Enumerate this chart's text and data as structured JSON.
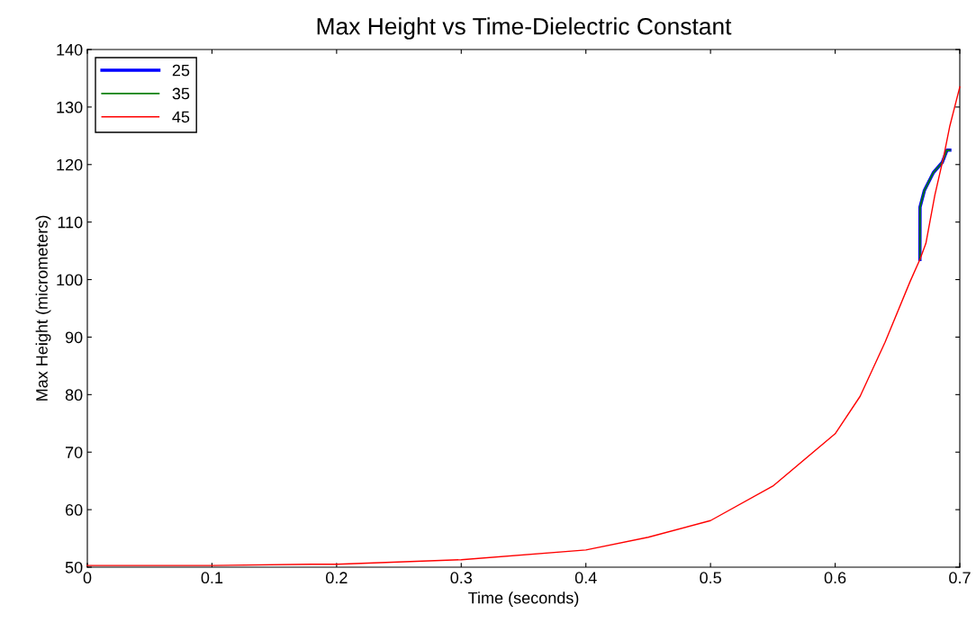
{
  "chart_data": {
    "type": "line",
    "title": "Max Height vs Time-Dielectric Constant",
    "xlabel": "Time (seconds)",
    "ylabel": "Max Height (micrometers)",
    "xlim": [
      0,
      0.7
    ],
    "ylim": [
      50,
      140
    ],
    "xticks": [
      0,
      0.1,
      0.2,
      0.3,
      0.4,
      0.5,
      0.6,
      0.7
    ],
    "yticks": [
      50,
      60,
      70,
      80,
      90,
      100,
      110,
      120,
      130,
      140
    ],
    "grid": false,
    "legend": "top left",
    "marker": "none",
    "line_style": "solid",
    "series": [
      {
        "name": "25",
        "color": "#0000ff",
        "x": [
          0.668,
          0.6681,
          0.6716,
          0.6788,
          0.686,
          0.6897,
          0.692
        ],
        "values": [
          103.5,
          112.6,
          115.5,
          118.6,
          120.4,
          122.5,
          122.5
        ]
      },
      {
        "name": "35",
        "color": "#008000",
        "x": [
          0.668,
          0.6681,
          0.6716,
          0.6788,
          0.686,
          0.6897,
          0.692
        ],
        "values": [
          103.5,
          112.6,
          115.5,
          118.6,
          120.4,
          122.5,
          122.5
        ]
      },
      {
        "name": "45",
        "color": "#ff0000",
        "x": [
          0,
          0.1,
          0.18,
          0.2,
          0.3,
          0.4,
          0.45,
          0.5,
          0.55,
          0.6,
          0.62,
          0.64,
          0.66,
          0.668,
          0.6728,
          0.68,
          0.6872,
          0.692,
          0.7
        ],
        "values": [
          50.3,
          50.3,
          50.5,
          50.5,
          51.3,
          53.0,
          55.2,
          58.1,
          64.1,
          73.2,
          79.7,
          89.1,
          99.6,
          103.5,
          106.3,
          114.7,
          121.5,
          126.7,
          133.5
        ]
      }
    ]
  }
}
